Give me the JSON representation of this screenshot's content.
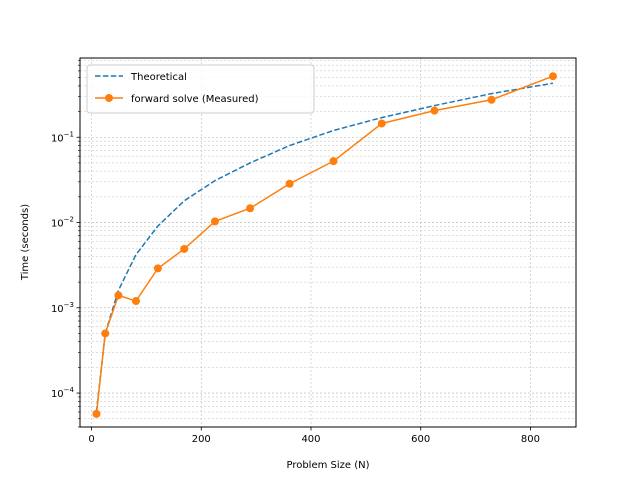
{
  "chart_data": {
    "type": "line",
    "title": "",
    "xlabel": "Problem Size (N)",
    "ylabel": "Time (seconds)",
    "xlim": [
      -21,
      883
    ],
    "ylim": [
      4e-05,
      0.85
    ],
    "yscale": "log",
    "grid": true,
    "legend_position": "top-left",
    "x_ticks": [
      0,
      200,
      400,
      600,
      800
    ],
    "y_ticks": [
      {
        "value": 0.0001,
        "base": "10",
        "exp": "−4"
      },
      {
        "value": 0.001,
        "base": "10",
        "exp": "−3"
      },
      {
        "value": 0.01,
        "base": "10",
        "exp": "−2"
      },
      {
        "value": 0.1,
        "base": "10",
        "exp": "−1"
      }
    ],
    "series": [
      {
        "name": "Theoretical",
        "style": "dashed",
        "color": "#1f77b4",
        "x": [
          9,
          25,
          49,
          81,
          121,
          169,
          225,
          289,
          361,
          441,
          529,
          625,
          729,
          841
        ],
        "y": [
          6e-05,
          0.0005,
          0.0016,
          0.0042,
          0.0091,
          0.018,
          0.031,
          0.05,
          0.08,
          0.12,
          0.17,
          0.235,
          0.325,
          0.43
        ]
      },
      {
        "name": "forward solve (Measured)",
        "style": "solid-marker",
        "color": "#ff7f0e",
        "x": [
          9,
          25,
          49,
          81,
          121,
          169,
          225,
          289,
          361,
          441,
          529,
          625,
          729,
          841
        ],
        "y": [
          5.7e-05,
          0.0005,
          0.0014,
          0.0012,
          0.0029,
          0.0049,
          0.0103,
          0.0147,
          0.0285,
          0.0525,
          0.145,
          0.205,
          0.275,
          0.52
        ]
      }
    ]
  }
}
